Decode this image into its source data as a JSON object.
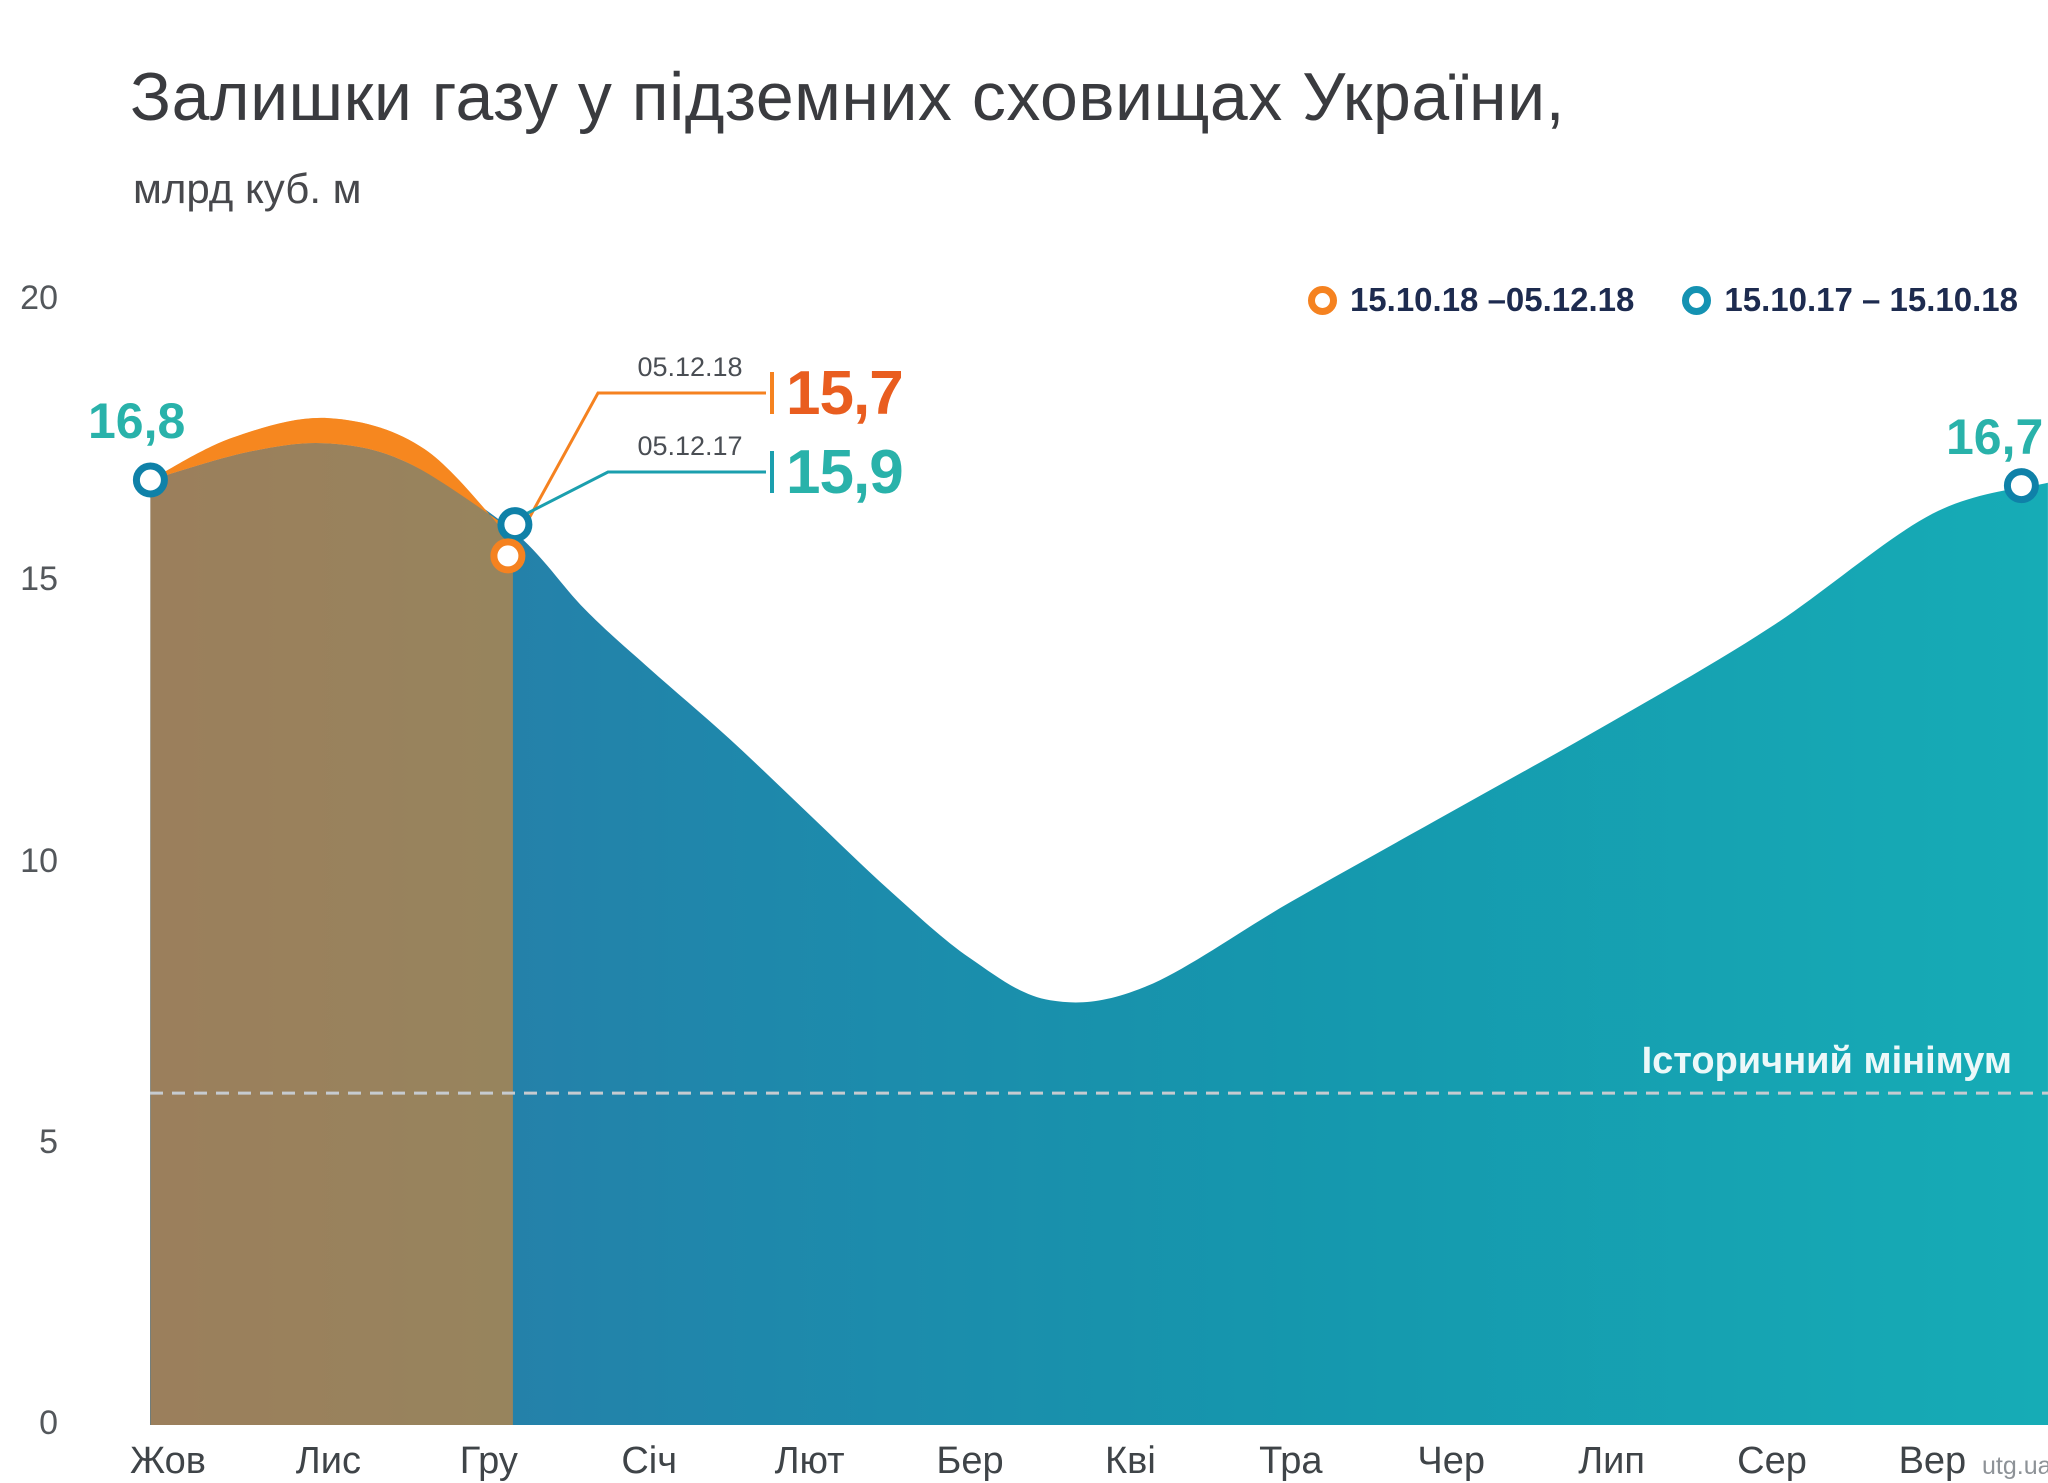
{
  "header": {
    "title": "Залишки газу у підземних сховищах України,",
    "subtitle": "млрд куб. м"
  },
  "watermark": "utg.ua",
  "legend": [
    {
      "key": "current",
      "label": "15.10.18 –05.12.18",
      "color": "#f58220"
    },
    {
      "key": "previous",
      "label": "15.10.17 – 15.10.18",
      "color": "#1492b2"
    }
  ],
  "annotations": {
    "start_label": "16,8",
    "end_label": "16,7",
    "current_date": "05.12.18",
    "current_value_label": "15,7",
    "previous_date": "05.12.17",
    "previous_value_label": "15,9",
    "min_line_label": "Історичний мінімум"
  },
  "colors": {
    "orange": "#f58220",
    "orange_area": "#f6871f",
    "orange_number": "#e95d1f",
    "teal_number": "#29b2aa",
    "teal_marker_stroke": "#0f81a8",
    "teal_callout_line": "#1b9fae",
    "dashed_line": "#c6cbd0",
    "area_gradient": [
      "#2e76a6",
      "#1f87ab",
      "#1597ad",
      "#16acb6"
    ]
  },
  "chart_data": {
    "type": "area",
    "title": "Залишки газу у підземних сховищах України, млрд куб. м",
    "x_categories": [
      "Жов",
      "Лис",
      "Гру",
      "Січ",
      "Лют",
      "Бер",
      "Кві",
      "Тра",
      "Чер",
      "Лип",
      "Сер",
      "Вер"
    ],
    "ylabel_values": [
      20,
      15,
      10,
      5,
      0
    ],
    "ylim": [
      0,
      20
    ],
    "historical_min_value": 5.9,
    "series": [
      {
        "key": "current",
        "name": "15.10.18 –05.12.18",
        "start_value": 16.8,
        "end_value": 15.7,
        "points": [
          [
            -0.11,
            16.8
          ],
          [
            0.4,
            17.55
          ],
          [
            1.0,
            17.9
          ],
          [
            1.6,
            17.35
          ],
          [
            2.15,
            15.7
          ]
        ]
      },
      {
        "key": "previous",
        "name": "15.10.17 – 15.10.18",
        "start_value": 16.8,
        "end_value": 16.7,
        "points": [
          [
            -0.11,
            16.8
          ],
          [
            0.5,
            17.3
          ],
          [
            1.0,
            17.45
          ],
          [
            1.5,
            17.1
          ],
          [
            2.15,
            15.9
          ],
          [
            2.6,
            14.5
          ],
          [
            3.0,
            13.45
          ],
          [
            3.5,
            12.2
          ],
          [
            4.0,
            10.85
          ],
          [
            4.5,
            9.5
          ],
          [
            5.0,
            8.3
          ],
          [
            5.5,
            7.55
          ],
          [
            6.1,
            7.8
          ],
          [
            7.0,
            9.3
          ],
          [
            8.0,
            10.9
          ],
          [
            9.0,
            12.5
          ],
          [
            10.0,
            14.2
          ],
          [
            11.0,
            16.2
          ],
          [
            11.72,
            16.75
          ]
        ]
      }
    ],
    "markers": [
      {
        "series": "previous",
        "x": -0.11,
        "value": 16.8
      },
      {
        "series": "previous",
        "x": 2.15,
        "value": 15.9
      },
      {
        "series": "current",
        "x": 2.15,
        "value": 15.7
      },
      {
        "series": "previous",
        "x": 11.58,
        "value": 16.7
      }
    ]
  }
}
